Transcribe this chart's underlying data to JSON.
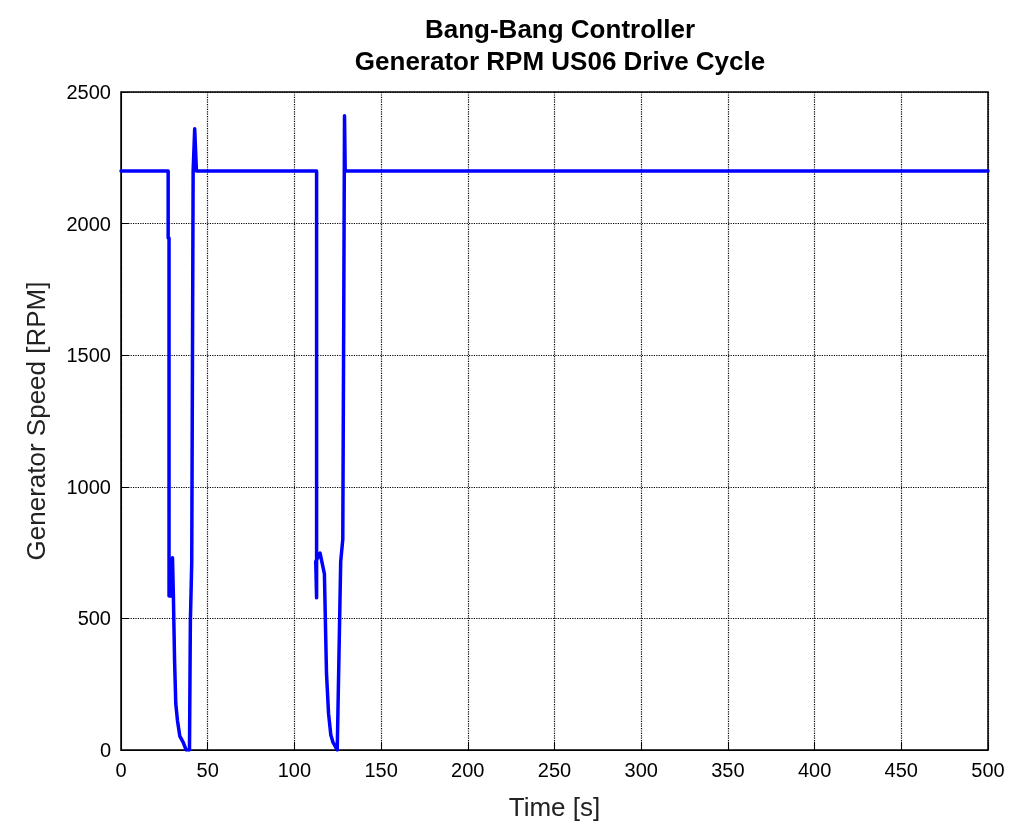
{
  "chart_data": {
    "type": "line",
    "title": "Bang-Bang Controller\nGenerator RPM US06 Drive Cycle",
    "xlabel": "Time [s]",
    "ylabel": "Generator Speed [RPM]",
    "xlim": [
      0,
      500
    ],
    "xticks": [
      0,
      50,
      100,
      150,
      200,
      250,
      300,
      350,
      400,
      450,
      500
    ],
    "ylim": [
      0,
      2500
    ],
    "yticks": [
      0,
      500,
      1000,
      1500,
      2000,
      2500
    ],
    "grid": true,
    "marker": "none",
    "line_style": "solid",
    "series": [
      {
        "color": "#0000ff",
        "x": [
          0,
          27.2,
          27.2,
          27.7,
          27.7,
          29.7,
          29.7,
          30.2,
          30.9,
          31.6,
          32.6,
          33.9,
          35.8,
          37.6,
          39.5,
          40.0,
          40.8,
          41.6,
          42.0,
          42.5,
          42.5,
          43.5,
          44,
          112.8,
          112.8,
          112.8,
          112.3,
          114.8,
          117.3,
          118.5,
          119.7,
          121,
          122.2,
          124.7,
          126.7,
          127.9,
          128.4,
          128.9,
          129.3,
          130.9,
          500
        ],
        "values": [
          2200,
          2200,
          1945,
          1945,
          585,
          585,
          730,
          590,
          338,
          175,
          110,
          53,
          30,
          0,
          0,
          486,
          714,
          2200,
          2200,
          2360,
          2360,
          2200,
          2200,
          2200,
          1390,
          578,
          716,
          748,
          669,
          292,
          138,
          57,
          30,
          0,
          716,
          800,
          1563,
          2410,
          2200,
          2200,
          2200
        ]
      }
    ]
  }
}
